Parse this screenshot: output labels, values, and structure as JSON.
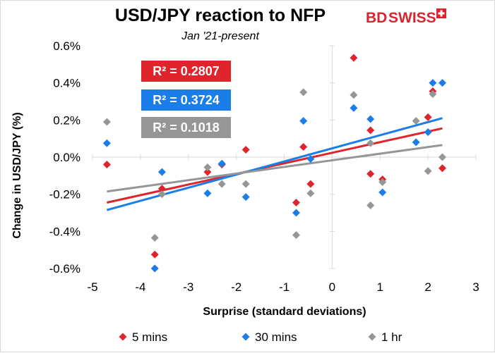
{
  "logo": {
    "text_bd": "BD",
    "text_swiss": "SWISS",
    "color": "#d9262e"
  },
  "chart_data": {
    "type": "scatter",
    "title": "USD/JPY reaction to NFP",
    "subtitle": "Jan '21-present",
    "xlabel": "Surprise (standard deviations)",
    "ylabel": "Change in USD/JPY  (%)",
    "xlim": [
      -5,
      3
    ],
    "ylim": [
      -0.6,
      0.6
    ],
    "x_ticks": [
      -5,
      -4,
      -3,
      -2,
      -1,
      0,
      1,
      2,
      3
    ],
    "y_ticks": [
      -0.6,
      -0.4,
      -0.2,
      0.0,
      0.2,
      0.4,
      0.6
    ],
    "x_tick_labels": [
      "-5",
      "-4",
      "-3",
      "-2",
      "-1",
      "0",
      "1",
      "2",
      "3"
    ],
    "y_tick_labels": [
      "-0.6%",
      "-0.4%",
      "-0.2%",
      "0.0%",
      "0.2%",
      "0.4%",
      "0.6%"
    ],
    "grid": false,
    "legend_position": "bottom",
    "series": [
      {
        "name": "5 mins",
        "color": "#e0242b",
        "r2_label": "R² = 0.2807",
        "trend": [
          [
            -4.7,
            -0.245
          ],
          [
            2.3,
            0.155
          ]
        ],
        "points": [
          [
            -4.7,
            -0.04
          ],
          [
            -3.7,
            -0.525
          ],
          [
            -3.55,
            -0.17
          ],
          [
            -2.6,
            -0.08
          ],
          [
            -2.3,
            -0.04
          ],
          [
            -1.8,
            0.04
          ],
          [
            -0.75,
            -0.245
          ],
          [
            -0.6,
            0.055
          ],
          [
            -0.45,
            -0.145
          ],
          [
            0.45,
            0.535
          ],
          [
            0.8,
            0.145
          ],
          [
            0.8,
            -0.09
          ],
          [
            1.05,
            -0.12
          ],
          [
            2.0,
            0.215
          ],
          [
            2.1,
            0.355
          ],
          [
            2.3,
            -0.06
          ]
        ]
      },
      {
        "name": "30 mins",
        "color": "#1a7de8",
        "r2_label": "R² = 0.3724",
        "trend": [
          [
            -4.7,
            -0.285
          ],
          [
            2.3,
            0.21
          ]
        ],
        "points": [
          [
            -4.7,
            0.075
          ],
          [
            -3.7,
            -0.6
          ],
          [
            -3.55,
            -0.08
          ],
          [
            -2.6,
            -0.195
          ],
          [
            -2.3,
            -0.035
          ],
          [
            -1.8,
            -0.215
          ],
          [
            -0.75,
            -0.3
          ],
          [
            -0.6,
            0.195
          ],
          [
            -0.45,
            -0.01
          ],
          [
            0.45,
            0.265
          ],
          [
            0.8,
            0.205
          ],
          [
            1.05,
            -0.19
          ],
          [
            1.75,
            0.08
          ],
          [
            2.0,
            0.135
          ],
          [
            2.1,
            0.4
          ],
          [
            2.3,
            0.4
          ]
        ]
      },
      {
        "name": "1 hr",
        "color": "#969696",
        "r2_label": "R² = 0.1018",
        "trend": [
          [
            -4.7,
            -0.185
          ],
          [
            2.3,
            0.065
          ]
        ],
        "points": [
          [
            -4.7,
            0.19
          ],
          [
            -3.7,
            -0.435
          ],
          [
            -3.55,
            -0.2
          ],
          [
            -2.6,
            -0.055
          ],
          [
            -2.3,
            -0.145
          ],
          [
            -1.8,
            -0.145
          ],
          [
            -0.75,
            -0.42
          ],
          [
            -0.6,
            0.35
          ],
          [
            -0.45,
            -0.195
          ],
          [
            0.45,
            0.335
          ],
          [
            0.8,
            0.075
          ],
          [
            0.8,
            -0.26
          ],
          [
            1.05,
            -0.135
          ],
          [
            1.75,
            0.195
          ],
          [
            2.0,
            -0.075
          ],
          [
            2.1,
            0.34
          ],
          [
            2.3,
            0.0
          ]
        ]
      }
    ]
  }
}
